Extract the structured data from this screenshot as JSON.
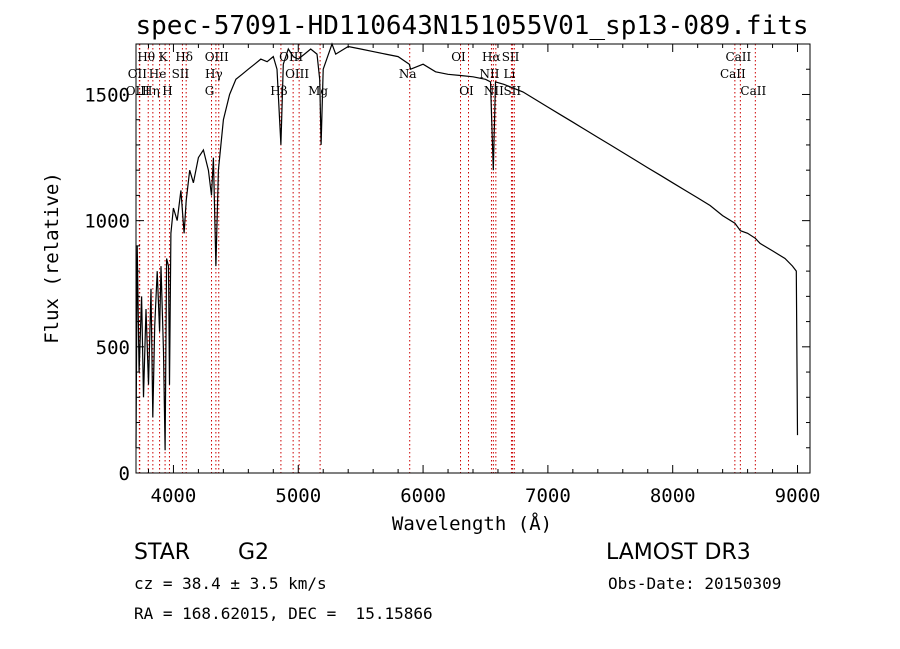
{
  "chart_data": {
    "type": "line",
    "title": "spec-57091-HD110643N151055V01_sp13-089.fits",
    "xlabel": "Wavelength (Å)",
    "ylabel": "Flux (relative)",
    "xlim": [
      3700,
      9100
    ],
    "ylim": [
      0,
      1700
    ],
    "xticks": [
      4000,
      5000,
      6000,
      7000,
      8000,
      9000
    ],
    "yticks": [
      0,
      500,
      1000,
      1500
    ],
    "xtick_labels": [
      "4000",
      "5000",
      "6000",
      "7000",
      "8000",
      "9000"
    ],
    "ytick_labels": [
      "0",
      "500",
      "1000",
      "1500"
    ],
    "grid": false,
    "spectrum_points": [
      [
        3700,
        100
      ],
      [
        3710,
        900
      ],
      [
        3725,
        400
      ],
      [
        3745,
        700
      ],
      [
        3760,
        300
      ],
      [
        3780,
        650
      ],
      [
        3800,
        350
      ],
      [
        3820,
        730
      ],
      [
        3835,
        220
      ],
      [
        3850,
        580
      ],
      [
        3870,
        800
      ],
      [
        3889,
        560
      ],
      [
        3900,
        820
      ],
      [
        3920,
        480
      ],
      [
        3933,
        90
      ],
      [
        3945,
        850
      ],
      [
        3960,
        820
      ],
      [
        3968,
        350
      ],
      [
        3980,
        950
      ],
      [
        4000,
        1050
      ],
      [
        4030,
        1000
      ],
      [
        4060,
        1120
      ],
      [
        4085,
        950
      ],
      [
        4102,
        1080
      ],
      [
        4130,
        1200
      ],
      [
        4160,
        1150
      ],
      [
        4200,
        1250
      ],
      [
        4240,
        1280
      ],
      [
        4280,
        1200
      ],
      [
        4305,
        1100
      ],
      [
        4320,
        1250
      ],
      [
        4340,
        820
      ],
      [
        4360,
        1200
      ],
      [
        4400,
        1400
      ],
      [
        4450,
        1500
      ],
      [
        4500,
        1560
      ],
      [
        4550,
        1580
      ],
      [
        4600,
        1600
      ],
      [
        4650,
        1620
      ],
      [
        4700,
        1640
      ],
      [
        4750,
        1630
      ],
      [
        4800,
        1650
      ],
      [
        4830,
        1600
      ],
      [
        4861,
        1300
      ],
      [
        4880,
        1620
      ],
      [
        4920,
        1680
      ],
      [
        4960,
        1650
      ],
      [
        5000,
        1640
      ],
      [
        5050,
        1660
      ],
      [
        5100,
        1680
      ],
      [
        5150,
        1660
      ],
      [
        5172,
        1560
      ],
      [
        5183,
        1300
      ],
      [
        5200,
        1600
      ],
      [
        5270,
        1700
      ],
      [
        5300,
        1660
      ],
      [
        5400,
        1690
      ],
      [
        5500,
        1680
      ],
      [
        5600,
        1670
      ],
      [
        5700,
        1660
      ],
      [
        5800,
        1650
      ],
      [
        5890,
        1620
      ],
      [
        5900,
        1600
      ],
      [
        6000,
        1620
      ],
      [
        6100,
        1590
      ],
      [
        6200,
        1580
      ],
      [
        6300,
        1575
      ],
      [
        6400,
        1570
      ],
      [
        6500,
        1560
      ],
      [
        6540,
        1550
      ],
      [
        6563,
        1200
      ],
      [
        6580,
        1550
      ],
      [
        6650,
        1540
      ],
      [
        6700,
        1530
      ],
      [
        6800,
        1510
      ],
      [
        6900,
        1480
      ],
      [
        7000,
        1450
      ],
      [
        7100,
        1420
      ],
      [
        7200,
        1390
      ],
      [
        7300,
        1360
      ],
      [
        7400,
        1330
      ],
      [
        7500,
        1300
      ],
      [
        7600,
        1270
      ],
      [
        7700,
        1240
      ],
      [
        7800,
        1210
      ],
      [
        7900,
        1180
      ],
      [
        8000,
        1150
      ],
      [
        8100,
        1120
      ],
      [
        8200,
        1090
      ],
      [
        8300,
        1060
      ],
      [
        8400,
        1020
      ],
      [
        8498,
        990
      ],
      [
        8542,
        960
      ],
      [
        8600,
        950
      ],
      [
        8662,
        930
      ],
      [
        8700,
        910
      ],
      [
        8800,
        880
      ],
      [
        8900,
        850
      ],
      [
        8960,
        820
      ],
      [
        8990,
        800
      ],
      [
        9000,
        150
      ]
    ],
    "line_markers": [
      {
        "name": "Hθ",
        "wavelength": 3798,
        "row": 0
      },
      {
        "name": "OII",
        "wavelength": 3727,
        "row": 1
      },
      {
        "name": "OIII",
        "wavelength": 3730,
        "row": 2
      },
      {
        "name": "Hη",
        "wavelength": 3835,
        "row": 2
      },
      {
        "name": "He",
        "wavelength": 3889,
        "row": 1
      },
      {
        "name": "K",
        "wavelength": 3933,
        "row": 0
      },
      {
        "name": "H",
        "wavelength": 3968,
        "row": 2
      },
      {
        "name": "SII",
        "wavelength": 4072,
        "row": 1
      },
      {
        "name": "Hδ",
        "wavelength": 4102,
        "row": 0
      },
      {
        "name": "OIII",
        "wavelength": 4363,
        "row": 0
      },
      {
        "name": "Hγ",
        "wavelength": 4340,
        "row": 1
      },
      {
        "name": "G",
        "wavelength": 4305,
        "row": 2
      },
      {
        "name": "Hβ",
        "wavelength": 4861,
        "row": 2
      },
      {
        "name": "OIII",
        "wavelength": 4959,
        "row": 0
      },
      {
        "name": "OIII",
        "wavelength": 5007,
        "row": 1
      },
      {
        "name": "Mg",
        "wavelength": 5175,
        "row": 2
      },
      {
        "name": "Na",
        "wavelength": 5893,
        "row": 1
      },
      {
        "name": "OI",
        "wavelength": 6300,
        "row": 0
      },
      {
        "name": "OI",
        "wavelength": 6364,
        "row": 2
      },
      {
        "name": "Hα",
        "wavelength": 6563,
        "row": 0
      },
      {
        "name": "NII",
        "wavelength": 6548,
        "row": 1
      },
      {
        "name": "NII",
        "wavelength": 6583,
        "row": 2
      },
      {
        "name": "SII",
        "wavelength": 6717,
        "row": 0
      },
      {
        "name": "Li",
        "wavelength": 6708,
        "row": 1
      },
      {
        "name": "SII",
        "wavelength": 6731,
        "row": 2
      },
      {
        "name": "CaII",
        "wavelength": 8542,
        "row": 0
      },
      {
        "name": "CaII",
        "wavelength": 8498,
        "row": 1
      },
      {
        "name": "CaII",
        "wavelength": 8662,
        "row": 2
      }
    ]
  },
  "info": {
    "object_type": "STAR",
    "subclass": "G2",
    "redshift": "cz = 38.4 ± 3.5 km/s",
    "coords": "RA = 168.62015, DEC =  15.15866",
    "survey": "LAMOST DR3",
    "obs_date": "Obs-Date: 20150309"
  },
  "colors": {
    "spectrum": "#000000",
    "marker": "#cc0000",
    "axis": "#000000"
  }
}
